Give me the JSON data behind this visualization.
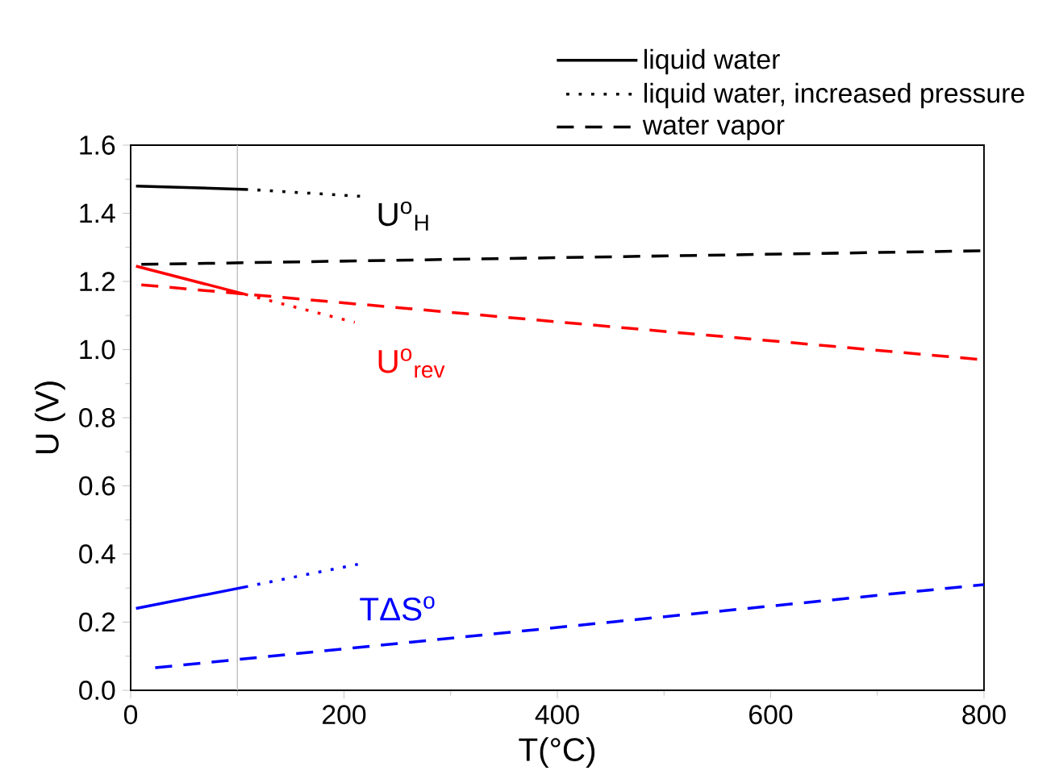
{
  "chart_data": {
    "type": "line",
    "xlabel": "T(°C)",
    "ylabel": "U (V)",
    "xlim": [
      0,
      800
    ],
    "ylim": [
      0,
      1.6
    ],
    "xticks": [
      0,
      200,
      400,
      600,
      800
    ],
    "yticks": [
      {
        "value": 0,
        "label": "0.0"
      },
      0.2,
      0.4,
      0.6,
      0.8,
      {
        "value": 1,
        "label": "1.0"
      },
      1.2,
      1.4,
      1.6
    ],
    "legend": "top right",
    "grid": false,
    "series": [
      {
        "name": "liquid water",
        "color": "#000000",
        "line_style": "solid",
        "x": [
          5,
          110
        ],
        "values": [
          1.48,
          1.47
        ]
      },
      {
        "name": "liquid water, increased pressure",
        "color": "#000000",
        "line_style": "dotted",
        "x": [
          110,
          215
        ],
        "values": [
          1.47,
          1.45
        ]
      },
      {
        "name": "water vapor",
        "color": "#000000",
        "line_style": "dashed",
        "x": [
          10,
          800
        ],
        "values": [
          1.25,
          1.29
        ]
      },
      {
        "color": "#ff0000",
        "line_style": "solid",
        "x": [
          5,
          110
        ],
        "values": [
          1.245,
          1.16
        ]
      },
      {
        "color": "#ff0000",
        "line_style": "dotted",
        "x": [
          110,
          210
        ],
        "values": [
          1.16,
          1.08
        ]
      },
      {
        "color": "#ff0000",
        "line_style": "dashed",
        "x": [
          10,
          800
        ],
        "values": [
          1.19,
          0.97
        ]
      },
      {
        "color": "#0000ff",
        "line_style": "solid",
        "x": [
          5,
          110
        ],
        "values": [
          0.24,
          0.305
        ]
      },
      {
        "color": "#0000ff",
        "line_style": "dotted",
        "x": [
          110,
          213
        ],
        "values": [
          0.305,
          0.37
        ]
      },
      {
        "color": "#0000ff",
        "line_style": "dashed",
        "x": [
          23,
          800
        ],
        "values": [
          0.066,
          0.31
        ]
      }
    ],
    "ref_lines": [
      {
        "axis": "x",
        "value": 100,
        "color": "#c0c0c0"
      }
    ],
    "annotations": [
      "U$^{o}$$_{H}$",
      "U$^{o}$$_{rev}$",
      "TΔS$^{o}$"
    ]
  }
}
